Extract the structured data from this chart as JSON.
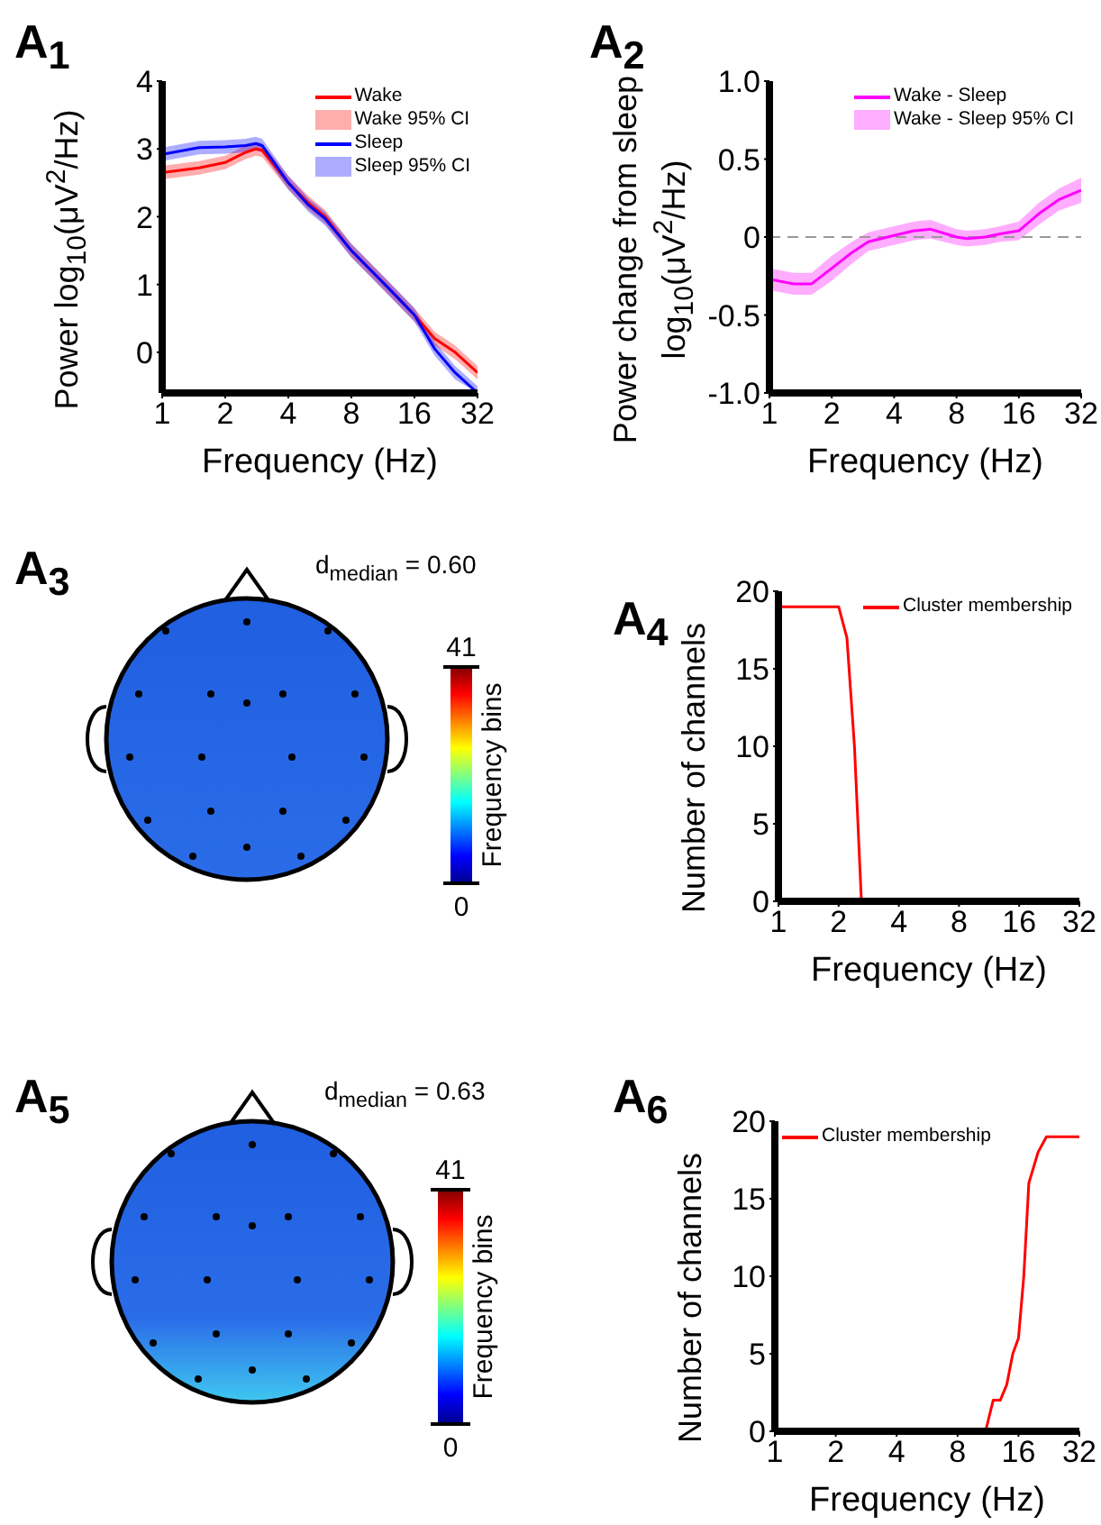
{
  "chart_data": [
    {
      "type": "line",
      "title": "A$_{1}$",
      "xlabel": "Frequency (Hz)",
      "ylabel": "Power log$_{10}$(μV$^{2}$/Hz)",
      "log": "x",
      "xlim": [
        1,
        32
      ],
      "xticks": [
        1,
        2,
        4,
        8,
        16,
        32
      ],
      "ylim": [
        -0.6,
        4
      ],
      "yticks": [
        0,
        1,
        2,
        3,
        4
      ],
      "legend": "top right",
      "series": [
        {
          "name": "Wake",
          "type": "line",
          "color": "#ff0000",
          "x": [
            1,
            1.5,
            2,
            2.5,
            2.8,
            3,
            4,
            5,
            6,
            8,
            12,
            16,
            20,
            25,
            32
          ],
          "values": [
            2.65,
            2.72,
            2.8,
            2.95,
            3.0,
            2.98,
            2.5,
            2.2,
            2.0,
            1.5,
            0.95,
            0.55,
            0.2,
            0.0,
            -0.3
          ],
          "lower": [
            2.55,
            2.62,
            2.7,
            2.85,
            2.9,
            2.88,
            2.4,
            2.1,
            1.9,
            1.4,
            0.85,
            0.45,
            0.1,
            -0.1,
            -0.4
          ],
          "upper": [
            2.75,
            2.82,
            2.9,
            3.05,
            3.1,
            3.08,
            2.6,
            2.3,
            2.1,
            1.6,
            1.05,
            0.65,
            0.3,
            0.1,
            -0.2
          ]
        },
        {
          "name": "Sleep",
          "type": "line",
          "color": "#0000ff",
          "x": [
            1,
            1.5,
            2,
            2.5,
            2.8,
            3,
            4,
            5,
            6,
            8,
            12,
            16,
            20,
            25,
            32
          ],
          "values": [
            2.92,
            3.02,
            3.03,
            3.05,
            3.08,
            3.05,
            2.5,
            2.17,
            1.97,
            1.5,
            0.95,
            0.55,
            0.05,
            -0.3,
            -0.6
          ],
          "lower": [
            2.82,
            2.92,
            2.93,
            2.95,
            2.98,
            2.95,
            2.4,
            2.07,
            1.87,
            1.4,
            0.85,
            0.45,
            -0.05,
            -0.4,
            -0.6
          ],
          "upper": [
            3.02,
            3.12,
            3.13,
            3.15,
            3.18,
            3.15,
            2.6,
            2.27,
            2.07,
            1.6,
            1.05,
            0.65,
            0.15,
            -0.2,
            -0.5
          ]
        }
      ],
      "annotations": [
        "Wake 95% CI",
        "Sleep 95% CI"
      ]
    },
    {
      "type": "line",
      "title": "A$_{2}$",
      "xlabel": "Frequency (Hz)",
      "ylabel": "Power change from sleep log$_{10}$(μV$^{2}$/Hz)",
      "log": "x",
      "xlim": [
        1,
        32
      ],
      "xticks": [
        1,
        2,
        4,
        8,
        16,
        32
      ],
      "ylim": [
        -1,
        1
      ],
      "yticks": [
        {
          "value": -1,
          "label": "-1.0"
        },
        -0.5,
        0,
        0.5,
        {
          "value": 1,
          "label": "1.0"
        }
      ],
      "legend": "top right",
      "ref_lines": [
        {
          "axis": "y",
          "value": 0,
          "color": "#999999",
          "line_style": "dashed"
        }
      ],
      "series": [
        {
          "name": "Wake - Sleep",
          "type": "line",
          "color": "#ff00ff",
          "x": [
            1,
            1.3,
            1.6,
            2,
            2.5,
            3,
            4,
            5,
            6,
            8,
            9,
            11,
            13,
            16,
            20,
            25,
            32
          ],
          "values": [
            -0.27,
            -0.3,
            -0.3,
            -0.2,
            -0.1,
            -0.03,
            0.01,
            0.04,
            0.05,
            0.0,
            -0.01,
            0.0,
            0.02,
            0.04,
            0.15,
            0.24,
            0.3
          ],
          "lower": [
            -0.34,
            -0.37,
            -0.37,
            -0.28,
            -0.17,
            -0.09,
            -0.05,
            -0.02,
            -0.01,
            -0.05,
            -0.06,
            -0.05,
            -0.03,
            -0.02,
            0.08,
            0.17,
            0.22
          ],
          "upper": [
            -0.2,
            -0.23,
            -0.23,
            -0.12,
            -0.03,
            0.03,
            0.07,
            0.1,
            0.11,
            0.05,
            0.04,
            0.05,
            0.07,
            0.1,
            0.22,
            0.31,
            0.38
          ]
        }
      ],
      "annotations": [
        "Wake - Sleep 95% CI"
      ]
    },
    {
      "type": "other",
      "title": "A$_{3}$",
      "subtitle": "d$_{median}$ = 0.60",
      "clabel": "Frequency bins",
      "annotations": [
        "41",
        "0"
      ]
    },
    {
      "type": "line",
      "title": "A$_{4}$",
      "xlabel": "Frequency (Hz)",
      "ylabel": "Number of channels",
      "log": "x",
      "xlim": [
        1,
        32
      ],
      "xticks": [
        1,
        2,
        4,
        8,
        16,
        32
      ],
      "ylim": [
        0,
        20
      ],
      "yticks": [
        0,
        5,
        10,
        15,
        20
      ],
      "legend": "top right",
      "series": [
        {
          "name": "Cluster membership",
          "type": "line",
          "color": "#ff0000",
          "x": [
            1,
            2,
            2.2,
            2.4,
            2.6,
            32
          ],
          "values": [
            19,
            19,
            17,
            10,
            0,
            0
          ]
        }
      ]
    },
    {
      "type": "other",
      "title": "A$_{5}$",
      "subtitle": "d$_{median}$ = 0.63",
      "clabel": "Frequency bins",
      "annotations": [
        "41",
        "0"
      ]
    },
    {
      "type": "line",
      "title": "A$_{6}$",
      "xlabel": "Frequency (Hz)",
      "ylabel": "Number of channels",
      "log": "x",
      "xlim": [
        1,
        32
      ],
      "xticks": [
        1,
        2,
        4,
        8,
        16,
        32
      ],
      "ylim": [
        0,
        20
      ],
      "yticks": [
        0,
        5,
        10,
        15,
        20
      ],
      "legend": "top left",
      "series": [
        {
          "name": "Cluster membership",
          "type": "line",
          "color": "#ff0000",
          "x": [
            1,
            11,
            12,
            13,
            14,
            15,
            16,
            17,
            18,
            20,
            22,
            32
          ],
          "values": [
            0,
            0,
            2,
            2,
            3,
            5,
            6,
            10,
            16,
            18,
            19,
            19
          ]
        }
      ]
    }
  ]
}
